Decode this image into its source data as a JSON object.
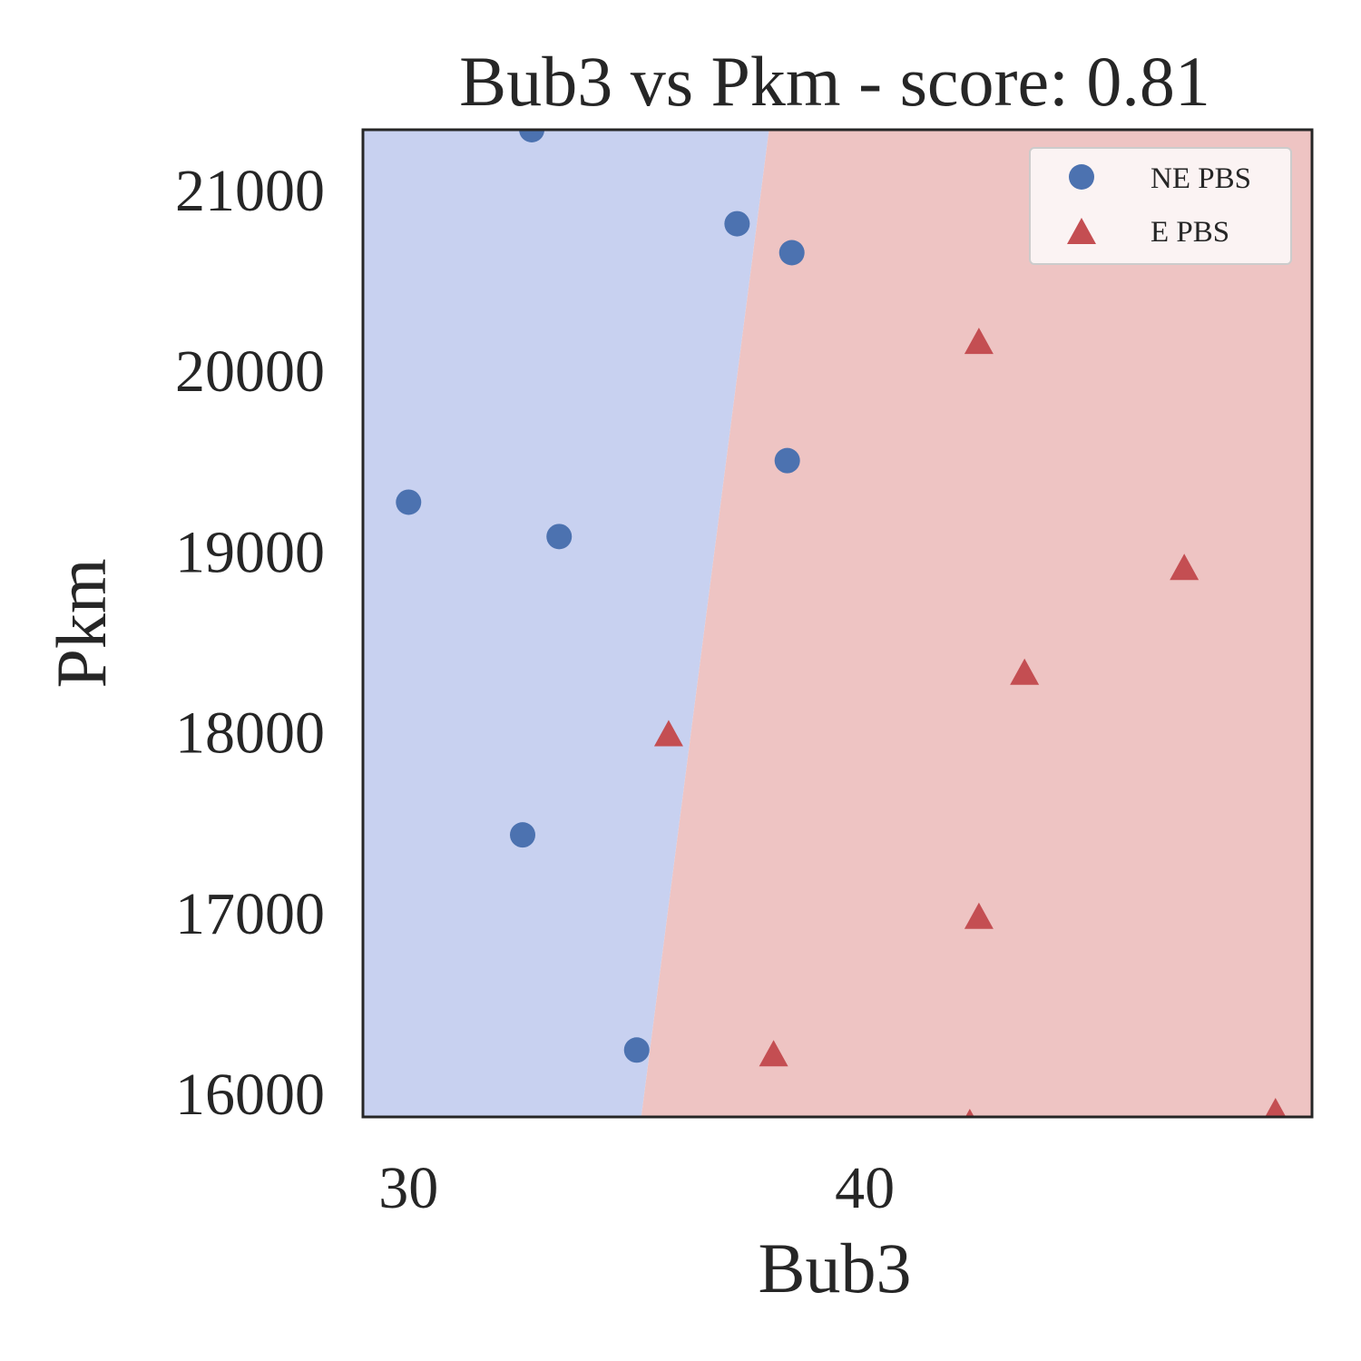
{
  "chart_data": {
    "type": "scatter",
    "title": "Bub3 vs Pkm - score: 0.81",
    "xlabel": "Bub3",
    "ylabel": "Pkm",
    "xlim": [
      29.0,
      49.8
    ],
    "ylim": [
      15870,
      21330
    ],
    "x_ticks": [
      30,
      40
    ],
    "y_ticks": [
      16000,
      17000,
      18000,
      19000,
      20000,
      21000
    ],
    "legend_position": "upper right",
    "grid": false,
    "decision_boundary": {
      "points": [
        [
          37.9,
          21330
        ],
        [
          35.1,
          15870
        ]
      ],
      "left_region_label": "NE PBS",
      "right_region_label": "E PBS",
      "left_color": "#c8d1f0",
      "right_color": "#eec4c3"
    },
    "series": [
      {
        "name": "NE PBS",
        "marker": "circle",
        "color": "#4c72b0",
        "points": [
          {
            "x": 32.7,
            "y": 21330
          },
          {
            "x": 37.2,
            "y": 20810
          },
          {
            "x": 38.4,
            "y": 20650
          },
          {
            "x": 38.3,
            "y": 19500
          },
          {
            "x": 30.0,
            "y": 19270
          },
          {
            "x": 33.3,
            "y": 19080
          },
          {
            "x": 32.5,
            "y": 17430
          },
          {
            "x": 35.0,
            "y": 16240
          }
        ]
      },
      {
        "name": "E PBS",
        "marker": "triangle",
        "color": "#c44e52",
        "points": [
          {
            "x": 42.5,
            "y": 20150
          },
          {
            "x": 47.0,
            "y": 18900
          },
          {
            "x": 43.5,
            "y": 18320
          },
          {
            "x": 35.7,
            "y": 17980
          },
          {
            "x": 42.5,
            "y": 16970
          },
          {
            "x": 38.0,
            "y": 16210
          },
          {
            "x": 49.0,
            "y": 15890
          },
          {
            "x": 42.3,
            "y": 15830
          }
        ]
      }
    ]
  }
}
